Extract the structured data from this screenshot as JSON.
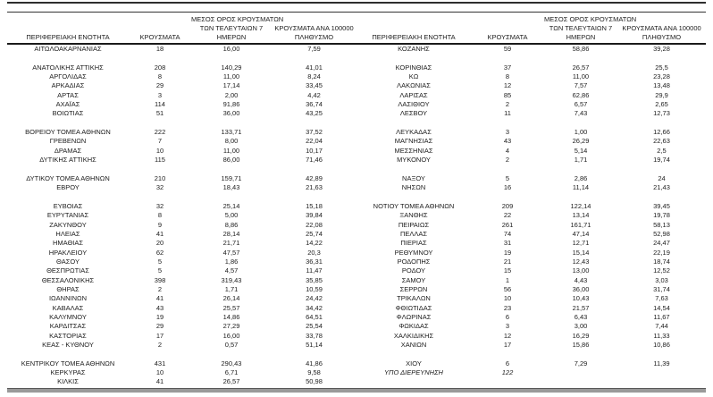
{
  "colors": {
    "text": "#1c1c1c",
    "rule_dark": "#2e2e2e",
    "rule_bottom_gray": "#9a9a9a"
  },
  "table": {
    "headers": {
      "region": "ΠΕΡΙΦΕΡΕΙΑΚΗ ΕΝΟΤΗΤΑ",
      "cases": "ΚΡΟΥΣΜΑΤΑ",
      "avg7_line1": "ΜΕΣΟΣ ΟΡΟΣ ΚΡΟΥΣΜΑΤΩΝ",
      "avg7_line2": "ΤΩΝ ΤΕΛΕΥΤΑΙΩΝ 7",
      "avg7_line3": "ΗΜΕΡΩΝ",
      "per100k_line1": "ΚΡΟΥΣΜΑΤΑ ΑΝΑ 100000",
      "per100k_line2": "ΠΛΗΘΥΣΜΟ"
    },
    "left_rows": [
      {
        "region": "ΑΙΤΩΛΟΑΚΑΡΝΑΝΙΑΣ",
        "cases": "18",
        "avg7": "16,00",
        "per100k": "7,59"
      },
      null,
      {
        "region": "ΑΝΑΤΟΛΙΚΗΣ ΑΤΤΙΚΗΣ",
        "cases": "208",
        "avg7": "140,29",
        "per100k": "41,01"
      },
      {
        "region": "ΑΡΓΟΛΙΔΑΣ",
        "cases": "8",
        "avg7": "11,00",
        "per100k": "8,24"
      },
      {
        "region": "ΑΡΚΑΔΙΑΣ",
        "cases": "29",
        "avg7": "17,14",
        "per100k": "33,45"
      },
      {
        "region": "ΑΡΤΑΣ",
        "cases": "3",
        "avg7": "2,00",
        "per100k": "4,42"
      },
      {
        "region": "ΑΧΑΪΑΣ",
        "cases": "114",
        "avg7": "91,86",
        "per100k": "36,74"
      },
      {
        "region": "ΒΟΙΩΤΙΑΣ",
        "cases": "51",
        "avg7": "36,00",
        "per100k": "43,25"
      },
      null,
      {
        "region": "ΒΟΡΕΙΟΥ ΤΟΜΕΑ ΑΘΗΝΩΝ",
        "cases": "222",
        "avg7": "133,71",
        "per100k": "37,52"
      },
      {
        "region": "ΓΡΕΒΕΝΩΝ",
        "cases": "7",
        "avg7": "8,00",
        "per100k": "22,04"
      },
      {
        "region": "ΔΡΑΜΑΣ",
        "cases": "10",
        "avg7": "11,00",
        "per100k": "10,17"
      },
      {
        "region": "ΔΥΤΙΚΗΣ ΑΤΤΙΚΗΣ",
        "cases": "115",
        "avg7": "86,00",
        "per100k": "71,46"
      },
      null,
      {
        "region": "ΔΥΤΙΚΟΥ ΤΟΜΕΑ ΑΘΗΝΩΝ",
        "cases": "210",
        "avg7": "159,71",
        "per100k": "42,89"
      },
      {
        "region": "ΕΒΡΟΥ",
        "cases": "32",
        "avg7": "18,43",
        "per100k": "21,63"
      },
      null,
      {
        "region": "ΕΥΒΟΙΑΣ",
        "cases": "32",
        "avg7": "25,14",
        "per100k": "15,18"
      },
      {
        "region": "ΕΥΡΥΤΑΝΙΑΣ",
        "cases": "8",
        "avg7": "5,00",
        "per100k": "39,84"
      },
      {
        "region": "ΖΑΚΥΝΘΟΥ",
        "cases": "9",
        "avg7": "8,86",
        "per100k": "22,08"
      },
      {
        "region": "ΗΛΕΙΑΣ",
        "cases": "41",
        "avg7": "28,14",
        "per100k": "25,74"
      },
      {
        "region": "ΗΜΑΘΙΑΣ",
        "cases": "20",
        "avg7": "21,71",
        "per100k": "14,22"
      },
      {
        "region": "ΗΡΑΚΛΕΙΟΥ",
        "cases": "62",
        "avg7": "47,57",
        "per100k": "20,3"
      },
      {
        "region": "ΘΑΣΟΥ",
        "cases": "5",
        "avg7": "1,86",
        "per100k": "36,31"
      },
      {
        "region": "ΘΕΣΠΡΩΤΙΑΣ",
        "cases": "5",
        "avg7": "4,57",
        "per100k": "11,47"
      },
      {
        "region": "ΘΕΣΣΑΛΟΝΙΚΗΣ",
        "cases": "398",
        "avg7": "319,43",
        "per100k": "35,85"
      },
      {
        "region": "ΘΗΡΑΣ",
        "cases": "2",
        "avg7": "1,71",
        "per100k": "10,59"
      },
      {
        "region": "ΙΩΑΝΝΙΝΩΝ",
        "cases": "41",
        "avg7": "26,14",
        "per100k": "24,42"
      },
      {
        "region": "ΚΑΒΑΛΑΣ",
        "cases": "43",
        "avg7": "25,57",
        "per100k": "34,42"
      },
      {
        "region": "ΚΑΛΥΜΝΟΥ",
        "cases": "19",
        "avg7": "14,86",
        "per100k": "64,51"
      },
      {
        "region": "ΚΑΡΔΙΤΣΑΣ",
        "cases": "29",
        "avg7": "27,29",
        "per100k": "25,54"
      },
      {
        "region": "ΚΑΣΤΟΡΙΑΣ",
        "cases": "17",
        "avg7": "16,00",
        "per100k": "33,78"
      },
      {
        "region": "ΚΕΑΣ - ΚΥΘΝΟΥ",
        "cases": "2",
        "avg7": "0,57",
        "per100k": "51,14"
      },
      null,
      {
        "region": "ΚΕΝΤΡΙΚΟΥ ΤΟΜΕΑ ΑΘΗΝΩΝ",
        "cases": "431",
        "avg7": "290,43",
        "per100k": "41,86"
      },
      {
        "region": "ΚΕΡΚΥΡΑΣ",
        "cases": "10",
        "avg7": "6,71",
        "per100k": "9,58"
      },
      {
        "region": "ΚΙΛΚΙΣ",
        "cases": "41",
        "avg7": "26,57",
        "per100k": "50,98"
      }
    ],
    "right_rows": [
      {
        "region": "ΚΟΖΑΝΗΣ",
        "cases": "59",
        "avg7": "58,86",
        "per100k": "39,28"
      },
      null,
      {
        "region": "ΚΟΡΙΝΘΙΑΣ",
        "cases": "37",
        "avg7": "26,57",
        "per100k": "25,5"
      },
      {
        "region": "ΚΩ",
        "cases": "8",
        "avg7": "11,00",
        "per100k": "23,28"
      },
      {
        "region": "ΛΑΚΩΝΙΑΣ",
        "cases": "12",
        "avg7": "7,57",
        "per100k": "13,48"
      },
      {
        "region": "ΛΑΡΙΣΑΣ",
        "cases": "85",
        "avg7": "62,86",
        "per100k": "29,9"
      },
      {
        "region": "ΛΑΣΙΘΙΟΥ",
        "cases": "2",
        "avg7": "6,57",
        "per100k": "2,65"
      },
      {
        "region": "ΛΕΣΒΟΥ",
        "cases": "11",
        "avg7": "7,43",
        "per100k": "12,73"
      },
      null,
      {
        "region": "ΛΕΥΚΑΔΑΣ",
        "cases": "3",
        "avg7": "1,00",
        "per100k": "12,66"
      },
      {
        "region": "ΜΑΓΝΗΣΙΑΣ",
        "cases": "43",
        "avg7": "26,29",
        "per100k": "22,63"
      },
      {
        "region": "ΜΕΣΣΗΝΙΑΣ",
        "cases": "4",
        "avg7": "5,14",
        "per100k": "2,5"
      },
      {
        "region": "ΜΥΚΟΝΟΥ",
        "cases": "2",
        "avg7": "1,71",
        "per100k": "19,74"
      },
      null,
      {
        "region": "ΝΑΞΟΥ",
        "cases": "5",
        "avg7": "2,86",
        "per100k": "24"
      },
      {
        "region": "ΝΗΣΩΝ",
        "cases": "16",
        "avg7": "11,14",
        "per100k": "21,43"
      },
      null,
      {
        "region": "ΝΟΤΙΟΥ ΤΟΜΕΑ ΑΘΗΝΩΝ",
        "cases": "209",
        "avg7": "122,14",
        "per100k": "39,45"
      },
      {
        "region": "ΞΑΝΘΗΣ",
        "cases": "22",
        "avg7": "13,14",
        "per100k": "19,78"
      },
      {
        "region": "ΠΕΙΡΑΙΩΣ",
        "cases": "261",
        "avg7": "161,71",
        "per100k": "58,13"
      },
      {
        "region": "ΠΕΛΛΑΣ",
        "cases": "74",
        "avg7": "47,14",
        "per100k": "52,98"
      },
      {
        "region": "ΠΙΕΡΙΑΣ",
        "cases": "31",
        "avg7": "12,71",
        "per100k": "24,47"
      },
      {
        "region": "ΡΕΘΥΜΝΟΥ",
        "cases": "19",
        "avg7": "15,14",
        "per100k": "22,19"
      },
      {
        "region": "ΡΟΔΟΠΗΣ",
        "cases": "21",
        "avg7": "12,43",
        "per100k": "18,74"
      },
      {
        "region": "ΡΟΔΟΥ",
        "cases": "15",
        "avg7": "13,00",
        "per100k": "12,52"
      },
      {
        "region": "ΣΑΜΟΥ",
        "cases": "1",
        "avg7": "4,43",
        "per100k": "3,03"
      },
      {
        "region": "ΣΕΡΡΩΝ",
        "cases": "56",
        "avg7": "36,00",
        "per100k": "31,74"
      },
      {
        "region": "ΤΡΙΚΑΛΩΝ",
        "cases": "10",
        "avg7": "10,43",
        "per100k": "7,63"
      },
      {
        "region": "ΦΘΙΩΤΙΔΑΣ",
        "cases": "23",
        "avg7": "21,57",
        "per100k": "14,54"
      },
      {
        "region": "ΦΛΩΡΙΝΑΣ",
        "cases": "6",
        "avg7": "6,43",
        "per100k": "11,67"
      },
      {
        "region": "ΦΩΚΙΔΑΣ",
        "cases": "3",
        "avg7": "3,00",
        "per100k": "7,44"
      },
      {
        "region": "ΧΑΛΚΙΔΙΚΗΣ",
        "cases": "12",
        "avg7": "16,29",
        "per100k": "11,33"
      },
      {
        "region": "ΧΑΝΙΩΝ",
        "cases": "17",
        "avg7": "15,86",
        "per100k": "10,86"
      },
      null,
      {
        "region": "ΧΙΟΥ",
        "cases": "6",
        "avg7": "7,29",
        "per100k": "11,39"
      },
      {
        "region": "ΥΠΟ ΔΙΕΡΕΥΝΗΣΗ",
        "cases": "122",
        "avg7": "",
        "per100k": "",
        "style": "italic"
      },
      null
    ]
  }
}
